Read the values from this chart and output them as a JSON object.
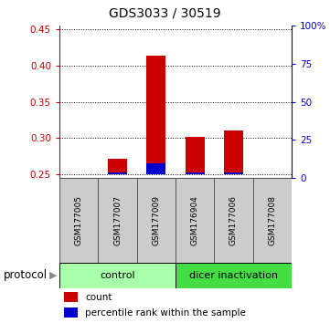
{
  "title": "GDS3033 / 30519",
  "samples": [
    "GSM177005",
    "GSM177007",
    "GSM177009",
    "GSM176904",
    "GSM177006",
    "GSM177008"
  ],
  "red_values": [
    0.25,
    0.272,
    0.413,
    0.301,
    0.31,
    0.25
  ],
  "blue_values": [
    0.0,
    0.253,
    0.265,
    0.253,
    0.253,
    0.0
  ],
  "ylim_left": [
    0.245,
    0.455
  ],
  "ylim_right": [
    0.0,
    100.0
  ],
  "yticks_left": [
    0.25,
    0.3,
    0.35,
    0.4,
    0.45
  ],
  "yticks_right": [
    0,
    25,
    50,
    75,
    100
  ],
  "yticklabels_right": [
    "0",
    "25",
    "50",
    "75",
    "100%"
  ],
  "baseline": 0.25,
  "red_color": "#cc0000",
  "blue_color": "#0000cc",
  "bar_width": 0.5,
  "control_color": "#aaffaa",
  "dicer_color": "#44dd44",
  "protocol_label": "protocol",
  "control_label": "control",
  "dicer_label": "dicer inactivation",
  "legend_red": "count",
  "legend_blue": "percentile rank within the sample",
  "sample_box_color": "#cccccc",
  "sample_box_border": "#555555",
  "fig_width": 3.61,
  "fig_height": 3.54,
  "dpi": 100
}
